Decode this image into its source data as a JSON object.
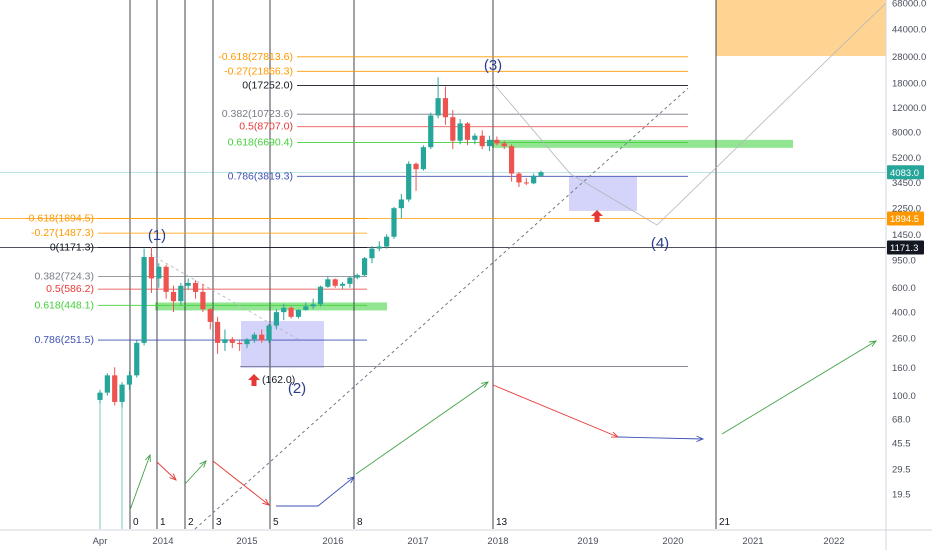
{
  "colors": {
    "up": "#26a69a",
    "down": "#ef5350",
    "fib_orange": "#ff9800",
    "fib_red": "#e53935",
    "fib_green": "#43d13a",
    "fib_blue": "#3f51b5",
    "fib_gray": "#787b86",
    "zone_blue": "#b7b5f5",
    "zone_orange": "#ffcc80",
    "green_band": "#86e386",
    "price_box": "#26a69a",
    "orange_box": "#ff9800",
    "black_box": "#131722"
  },
  "chart_data": {
    "type": "candlestick",
    "scale": "log",
    "price_axis": [
      "68000.0",
      "44000.0",
      "28000.0",
      "18000.0",
      "12000.0",
      "8000.0",
      "5200.0",
      "3450.0",
      "2250.0",
      "1450.0",
      "950.0",
      "600.0",
      "400.0",
      "260.0",
      "160.0",
      "100.0",
      "68.0",
      "45.5",
      "29.5",
      "19.5"
    ],
    "time_axis": [
      "Apr",
      "2014",
      "2015",
      "2016",
      "2017",
      "2018",
      "2019",
      "2020",
      "2021",
      "2022"
    ],
    "price_labels": {
      "current": "4083.0",
      "orange": "1894.5",
      "black": "1171.3"
    },
    "cycle_numbers": [
      "0",
      "1",
      "2",
      "3",
      "5",
      "8",
      "13",
      "21"
    ],
    "wave_labels": [
      "(1)",
      "(2)",
      "(3)",
      "(4)"
    ],
    "wave_low_label": "(162.0)",
    "fib_levels_2013": [
      {
        "text": "-0.618(1894.5)",
        "color": "orange"
      },
      {
        "text": "-0.27(1487.3)",
        "color": "orange"
      },
      {
        "text": "0(1171.3)",
        "color": "black"
      },
      {
        "text": "0.382(724.3)",
        "color": "gray"
      },
      {
        "text": "0.5(586.2)",
        "color": "red"
      },
      {
        "text": "0.618(448.1)",
        "color": "green"
      },
      {
        "text": "0.786(251.5)",
        "color": "blue"
      }
    ],
    "fib_levels_2017": [
      {
        "text": "-0.618(27813.6)",
        "color": "orange"
      },
      {
        "text": "-0.27(21866.3)",
        "color": "orange"
      },
      {
        "text": "0(17252.0)",
        "color": "black"
      },
      {
        "text": "0.382(10723.6)",
        "color": "gray"
      },
      {
        "text": "0.5(8707.0)",
        "color": "red"
      },
      {
        "text": "0.618(6690.4)",
        "color": "green"
      },
      {
        "text": "0.786(3819.3)",
        "color": "blue"
      }
    ],
    "candles": [
      [
        93,
        110,
        88,
        105
      ],
      [
        105,
        145,
        100,
        140
      ],
      [
        140,
        160,
        85,
        90
      ],
      [
        90,
        125,
        82,
        120
      ],
      [
        120,
        150,
        110,
        140
      ],
      [
        140,
        250,
        135,
        240
      ],
      [
        240,
        1150,
        230,
        1000
      ],
      [
        1000,
        1180,
        550,
        700
      ],
      [
        700,
        900,
        600,
        850
      ],
      [
        850,
        880,
        500,
        560
      ],
      [
        560,
        620,
        400,
        480
      ],
      [
        480,
        650,
        450,
        620
      ],
      [
        620,
        700,
        580,
        650
      ],
      [
        650,
        680,
        500,
        560
      ],
      [
        560,
        640,
        400,
        420
      ],
      [
        420,
        430,
        300,
        340
      ],
      [
        340,
        370,
        200,
        240
      ],
      [
        240,
        300,
        210,
        255
      ],
      [
        255,
        265,
        220,
        240
      ],
      [
        240,
        250,
        210,
        235
      ],
      [
        235,
        260,
        220,
        255
      ],
      [
        255,
        285,
        240,
        275
      ],
      [
        275,
        300,
        240,
        250
      ],
      [
        250,
        330,
        240,
        320
      ],
      [
        320,
        420,
        300,
        400
      ],
      [
        400,
        460,
        350,
        430
      ],
      [
        430,
        440,
        360,
        370
      ],
      [
        370,
        420,
        360,
        415
      ],
      [
        415,
        470,
        410,
        440
      ],
      [
        440,
        500,
        420,
        455
      ],
      [
        455,
        620,
        440,
        610
      ],
      [
        610,
        720,
        600,
        690
      ],
      [
        690,
        700,
        600,
        620
      ],
      [
        620,
        660,
        590,
        640
      ],
      [
        640,
        720,
        600,
        710
      ],
      [
        710,
        760,
        690,
        740
      ],
      [
        740,
        1000,
        730,
        980
      ],
      [
        980,
        1200,
        900,
        1150
      ],
      [
        1150,
        1300,
        1100,
        1190
      ],
      [
        1190,
        1460,
        1150,
        1400
      ],
      [
        1400,
        2300,
        1350,
        2250
      ],
      [
        2250,
        2850,
        1900,
        2600
      ],
      [
        2600,
        4900,
        2500,
        4700
      ],
      [
        4700,
        4800,
        3000,
        4300
      ],
      [
        4300,
        6400,
        4200,
        6200
      ],
      [
        6200,
        11000,
        6000,
        10500
      ],
      [
        10500,
        19800,
        10000,
        14000
      ],
      [
        14000,
        17000,
        9000,
        10200
      ],
      [
        10200,
        11500,
        6000,
        6900
      ],
      [
        6900,
        9900,
        6500,
        9200
      ],
      [
        9200,
        9400,
        6400,
        7000
      ],
      [
        7000,
        7800,
        6500,
        7500
      ],
      [
        7500,
        8200,
        6000,
        6300
      ],
      [
        6300,
        7500,
        5800,
        7000
      ],
      [
        7000,
        7400,
        6400,
        6600
      ],
      [
        6600,
        6900,
        6000,
        6300
      ],
      [
        6300,
        6500,
        3500,
        4000
      ],
      [
        4000,
        4100,
        3200,
        3450
      ],
      [
        3450,
        3700,
        3300,
        3400
      ],
      [
        3400,
        4000,
        3350,
        3850
      ],
      [
        3850,
        4200,
        3800,
        4080
      ]
    ],
    "annotations": [
      "cycle arrows",
      "zones",
      "fib retracements"
    ]
  }
}
